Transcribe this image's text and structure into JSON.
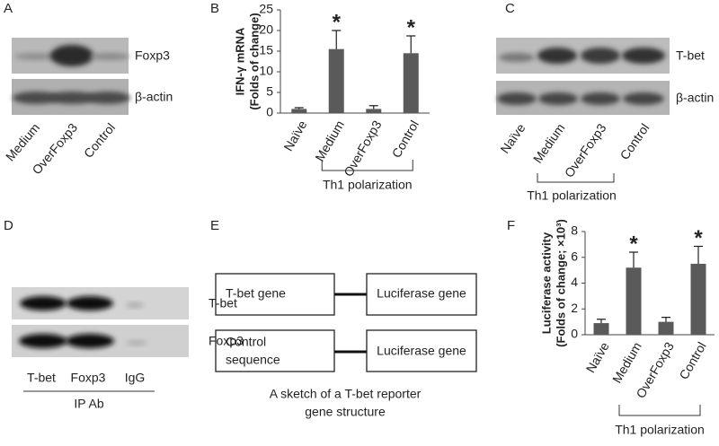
{
  "panels": {
    "A": {
      "letter": "A",
      "bands": [
        "Foxp3",
        "β-actin"
      ],
      "lanes": [
        "Medium",
        "OverFoxp3",
        "Control"
      ]
    },
    "C": {
      "letter": "C",
      "bands": [
        "T-bet",
        "β-actin"
      ],
      "lanes": [
        "Naïve",
        "Medium",
        "OverFoxp3",
        "Control"
      ],
      "group_label": "Th1 polarization"
    },
    "D": {
      "letter": "D",
      "bands": [
        "T-bet",
        "Foxp3"
      ],
      "lanes": [
        "T-bet",
        "Foxp3",
        "IgG"
      ],
      "lane_group": "IP Ab"
    },
    "E": {
      "letter": "E",
      "constructs": [
        {
          "left": [
            "T-bet gene"
          ],
          "right": "Luciferase gene"
        },
        {
          "left": [
            "Control",
            "sequence"
          ],
          "right": "Luciferase gene"
        }
      ],
      "caption": [
        "A sketch of a T-bet reporter",
        "gene structure"
      ]
    }
  },
  "chart_data": [
    {
      "type": "bar",
      "panel": "B",
      "y_label": [
        "IFN-γ mRNA",
        "(Folds of change)"
      ],
      "categories": [
        "Naïve",
        "Medium",
        "OverFoxp3",
        "Control"
      ],
      "values": [
        1,
        15.5,
        1,
        14.5
      ],
      "errors": [
        0.3,
        4.5,
        0.8,
        4.2
      ],
      "color": "#5a5a5a",
      "ylim": [
        0,
        25
      ],
      "yticks": [
        0,
        5,
        10,
        15,
        20,
        25
      ],
      "grid": false,
      "annotations": [
        {
          "text": "*",
          "category": "Medium"
        },
        {
          "text": "*",
          "category": "Control"
        }
      ],
      "group_label": {
        "text": "Th1 polarization",
        "categories": [
          "Medium",
          "Control"
        ]
      }
    },
    {
      "type": "bar",
      "panel": "F",
      "y_label": [
        "Luciferase activity",
        "(Folds of change; ×10³)"
      ],
      "categories": [
        "Naïve",
        "Medium",
        "OverFoxp3",
        "Control"
      ],
      "values": [
        0.9,
        5.2,
        1.0,
        5.5
      ],
      "errors": [
        0.3,
        1.2,
        0.35,
        1.35
      ],
      "color": "#5a5a5a",
      "ylim": [
        0,
        8
      ],
      "yticks": [
        0,
        2,
        4,
        6,
        8
      ],
      "grid": false,
      "annotations": [
        {
          "text": "*",
          "category": "Medium"
        },
        {
          "text": "*",
          "category": "Control"
        }
      ],
      "group_label": {
        "text": "Th1 polarization",
        "categories": [
          "Medium",
          "Control"
        ]
      }
    }
  ]
}
